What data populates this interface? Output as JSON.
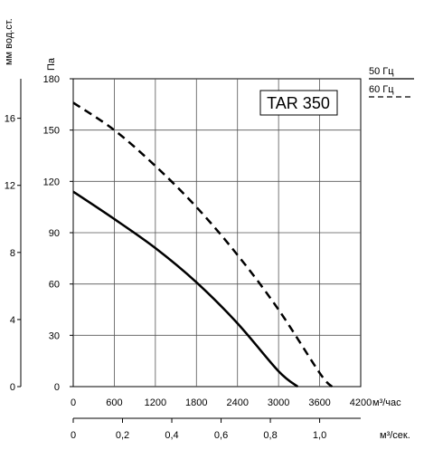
{
  "chart_data": {
    "type": "line",
    "model_label": "TAR 350",
    "x": {
      "unit": "м³/час",
      "range": [
        0,
        4200
      ],
      "ticks": [
        0,
        600,
        1200,
        1800,
        2400,
        3000,
        3600,
        4200
      ]
    },
    "x_secondary": {
      "unit": "м³/сек.",
      "ticks": [
        0,
        0.2,
        0.4,
        0.6,
        0.8,
        1.0
      ],
      "tick_labels": [
        "0",
        "0,2",
        "0,4",
        "0,6",
        "0,8",
        "1,0"
      ]
    },
    "y": {
      "unit": "Па",
      "range": [
        0,
        180
      ],
      "ticks": [
        0,
        30,
        60,
        90,
        120,
        150,
        180
      ]
    },
    "y_secondary": {
      "unit": "мм вод.ст.",
      "ticks": [
        0,
        4,
        8,
        12,
        16
      ]
    },
    "grid": true,
    "series": [
      {
        "name": "50 Гц",
        "style": "solid",
        "color": "#000000",
        "points": [
          [
            0,
            114
          ],
          [
            600,
            98
          ],
          [
            1200,
            81
          ],
          [
            1800,
            61
          ],
          [
            2400,
            37
          ],
          [
            3000,
            9
          ],
          [
            3280,
            0
          ]
        ]
      },
      {
        "name": "60 Гц",
        "style": "dashed",
        "color": "#000000",
        "points": [
          [
            0,
            166
          ],
          [
            600,
            150
          ],
          [
            1200,
            129
          ],
          [
            1800,
            105
          ],
          [
            2400,
            77
          ],
          [
            3000,
            45
          ],
          [
            3600,
            8
          ],
          [
            3780,
            0
          ]
        ]
      }
    ],
    "legend": [
      {
        "label": "50 Гц",
        "style": "solid"
      },
      {
        "label": "60 Гц",
        "style": "dashed"
      }
    ]
  }
}
